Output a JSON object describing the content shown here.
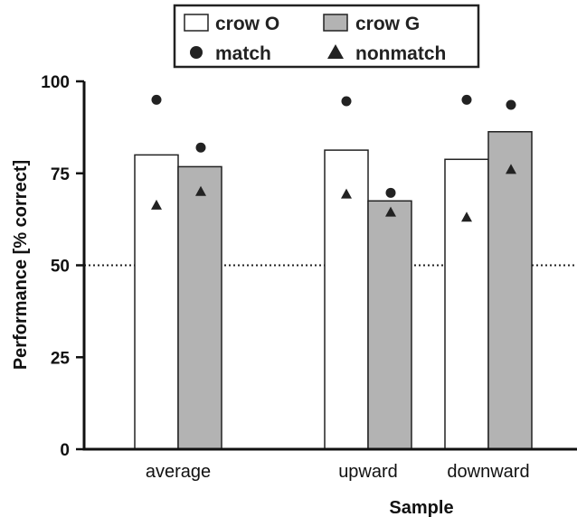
{
  "chart_data": {
    "type": "bar",
    "categories": [
      "average",
      "upward",
      "downward"
    ],
    "series": [
      {
        "name": "crow O",
        "values": [
          80,
          81.3,
          78.8
        ],
        "color": "#ffffff"
      },
      {
        "name": "crow G",
        "values": [
          76.8,
          67.5,
          86.3
        ],
        "color": "#b3b3b3"
      }
    ],
    "markers": [
      {
        "name": "match",
        "shape": "circle",
        "values": [
          [
            95,
            82
          ],
          [
            94.6,
            69.7
          ],
          [
            95,
            93.6
          ]
        ]
      },
      {
        "name": "nonmatch",
        "shape": "triangle",
        "values": [
          [
            66.5,
            70.2
          ],
          [
            69.5,
            64.6
          ],
          [
            63.2,
            76.2
          ]
        ]
      }
    ],
    "xlabel": "Sample",
    "ylabel": "Performance [% correct]",
    "ylim": [
      0,
      100
    ],
    "yticks": [
      0,
      25,
      50,
      75,
      100
    ],
    "reference_line": {
      "y": 50,
      "style": "dotted"
    },
    "legend_position": "top"
  }
}
